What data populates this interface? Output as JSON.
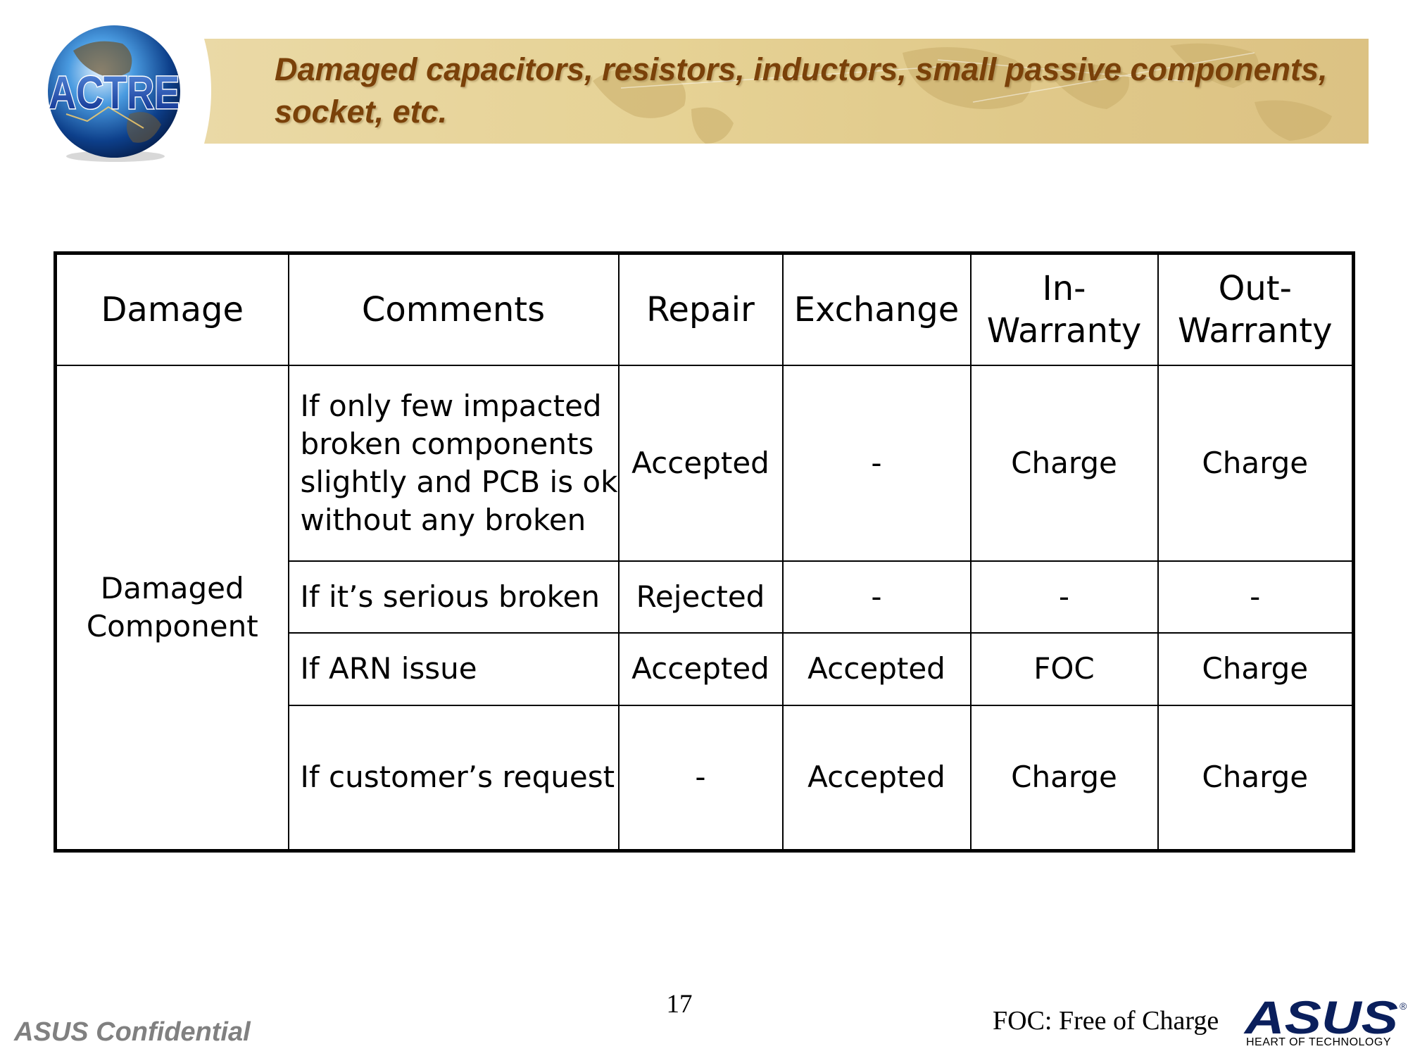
{
  "header": {
    "logo_text": "ACTRE",
    "title": "Damaged capacitors, resistors, inductors, small passive components, socket, etc."
  },
  "table": {
    "columns": [
      "Damage",
      "Comments",
      "Repair",
      "Exchange",
      "In-\nWarranty",
      "Out-\nWarranty"
    ],
    "damage_label": "Damaged\nComponent",
    "rows": [
      {
        "comment": "If only few impacted broken components slightly and PCB is ok without any broken",
        "repair": "Accepted",
        "exchange": "-",
        "in_warranty": "Charge",
        "out_warranty": "Charge"
      },
      {
        "comment": "If it’s serious broken",
        "repair": "Rejected",
        "exchange": "-",
        "in_warranty": "-",
        "out_warranty": "-"
      },
      {
        "comment": "If ARN issue",
        "repair": "Accepted",
        "exchange": "Accepted",
        "in_warranty": "FOC",
        "out_warranty": "Charge"
      },
      {
        "comment": "If customer’s request",
        "repair": "-",
        "exchange": "Accepted",
        "in_warranty": "Charge",
        "out_warranty": "Charge"
      }
    ]
  },
  "footer": {
    "page_number": "17",
    "confidential": "ASUS Confidential",
    "foc_note": "FOC: Free of Charge",
    "brand": "ASUS",
    "brand_tagline": "HEART OF TECHNOLOGY",
    "registered_mark": "®"
  },
  "colors": {
    "title": "#7a4109",
    "banner": "#e6d295",
    "confidential": "#808080",
    "asus_blue": "#0a1f5c"
  }
}
